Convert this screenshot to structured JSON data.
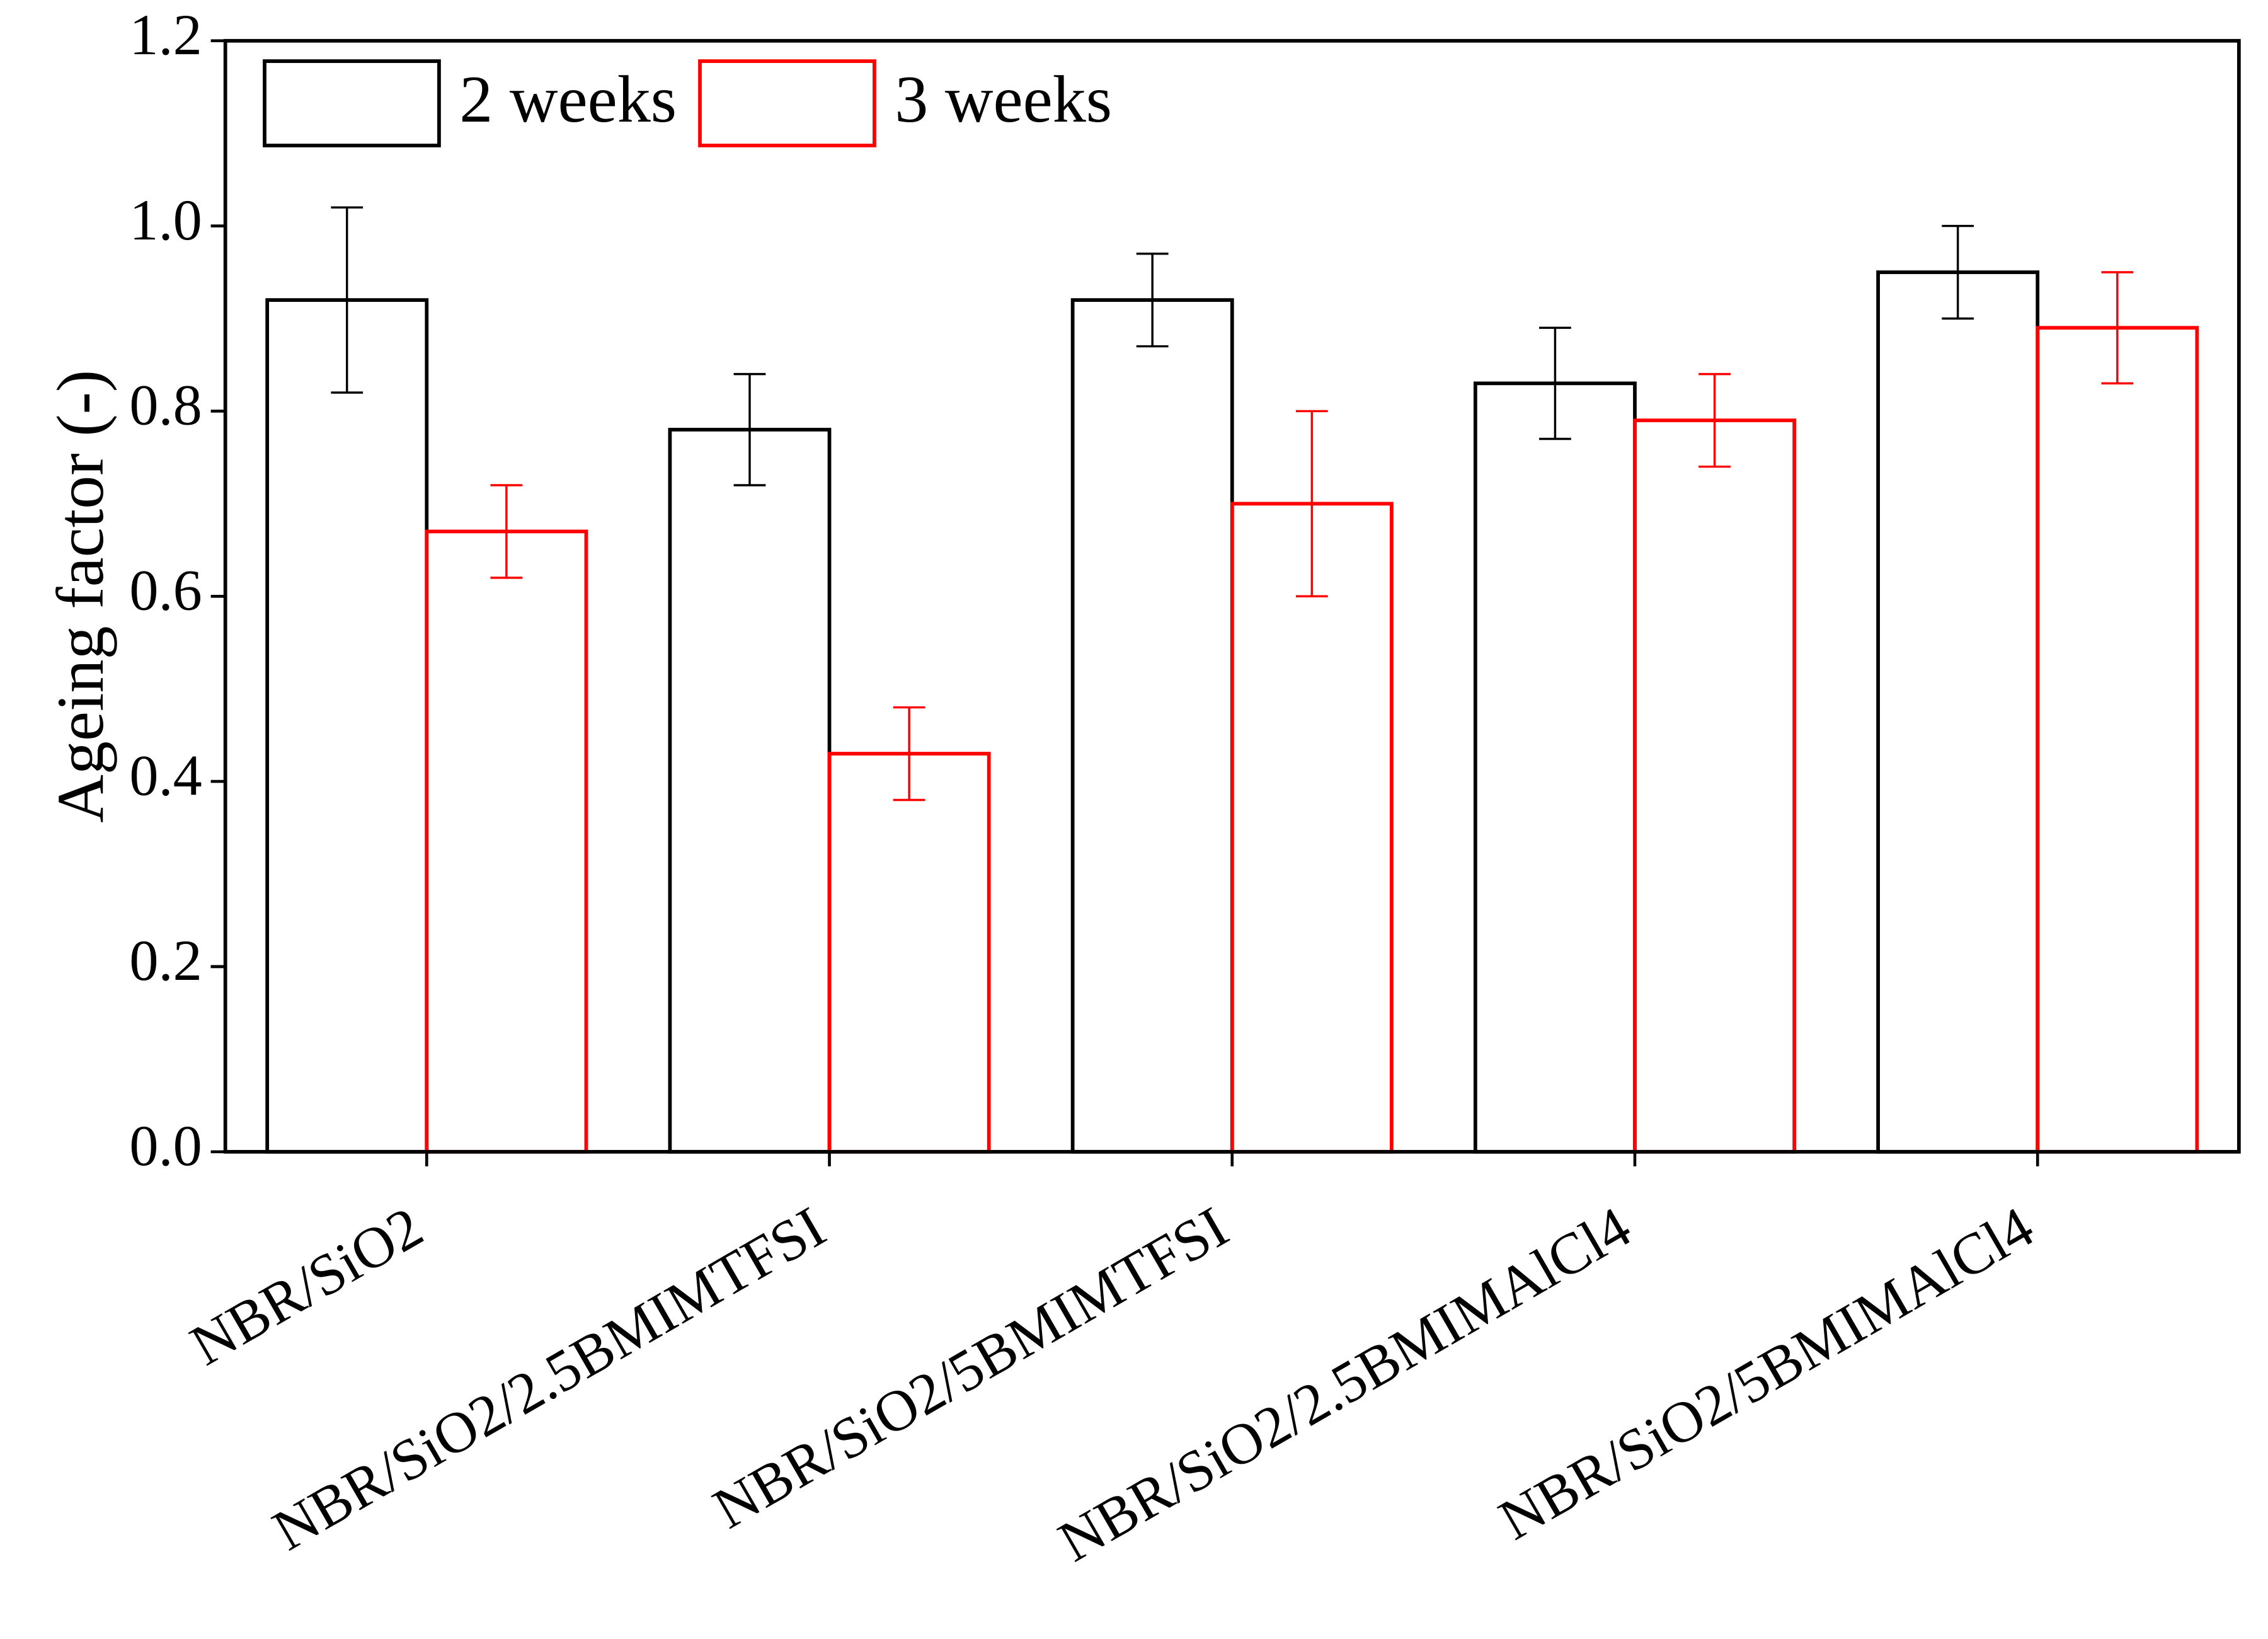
{
  "chart_data": {
    "type": "bar",
    "y_label": "Ageing factor (-)",
    "categories": [
      "NBR/SiO2",
      "NBR/SiO2/2.5BMIMTFSI",
      "NBR/SiO2/5BMIMTFSI",
      "NBR/SiO2/2.5BMIMAlCl4",
      "NBR/SiO2/5BMIMAlCl4"
    ],
    "series": [
      {
        "name": "2 weeks",
        "color": "#000000",
        "values": [
          0.92,
          0.78,
          0.92,
          0.83,
          0.95
        ],
        "errors": [
          0.1,
          0.06,
          0.05,
          0.06,
          0.05
        ]
      },
      {
        "name": "3 weeks",
        "color": "#ff0000",
        "values": [
          0.67,
          0.43,
          0.7,
          0.79,
          0.89
        ],
        "errors": [
          0.05,
          0.05,
          0.1,
          0.05,
          0.06
        ]
      }
    ],
    "ylim": [
      0.0,
      1.2
    ],
    "yticks": [
      {
        "value": 0,
        "label": "0.0"
      },
      0.2,
      0.4,
      0.6,
      0.8,
      {
        "value": 1,
        "label": "1.0"
      },
      0.2,
      1.2
    ],
    "legend": "upper left"
  }
}
